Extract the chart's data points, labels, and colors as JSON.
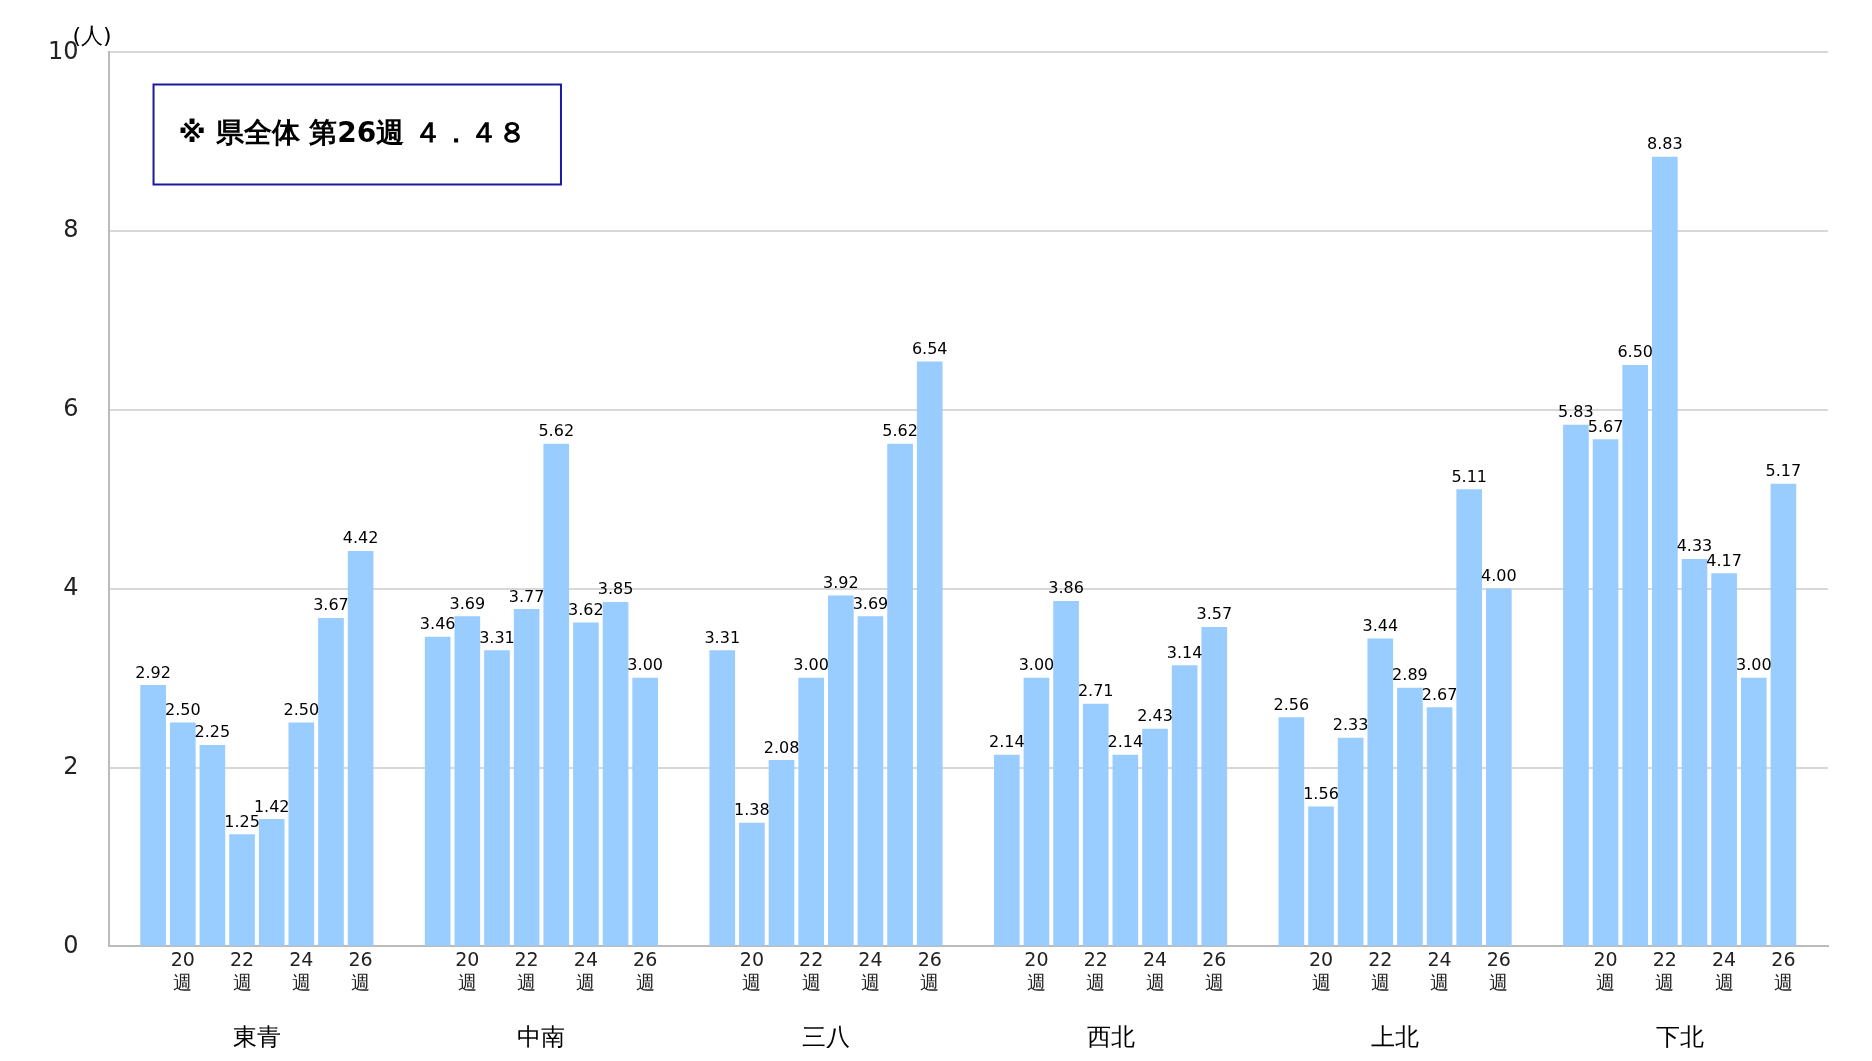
{
  "chart_data": {
    "type": "bar",
    "ylabel": "(人)",
    "categories": [
      null,
      "20週",
      null,
      "22週",
      null,
      "24週",
      null,
      "26週",
      null,
      "20週",
      null,
      "22週",
      null,
      "24週",
      null,
      "26週",
      null,
      "20週",
      null,
      "22週",
      null,
      "24週",
      null,
      "26週",
      null,
      "20週",
      null,
      "22週",
      null,
      "24週",
      null,
      "26週",
      null,
      "20週",
      null,
      "22週",
      null,
      "24週",
      null,
      "26週",
      null,
      "20週",
      null,
      "22週",
      null,
      "24週",
      null,
      "26週"
    ],
    "values": [
      2.92,
      2.5,
      2.25,
      1.25,
      1.42,
      2.5,
      3.67,
      4.42,
      3.46,
      3.69,
      3.31,
      3.77,
      5.62,
      3.62,
      3.85,
      3.0,
      3.31,
      1.38,
      2.08,
      3.0,
      3.92,
      3.69,
      5.62,
      6.54,
      2.14,
      3.0,
      3.86,
      2.71,
      2.14,
      2.43,
      3.14,
      3.57,
      2.56,
      1.56,
      2.33,
      3.44,
      2.89,
      2.67,
      5.11,
      4.0,
      5.83,
      5.67,
      6.5,
      8.83,
      4.33,
      4.17,
      3.0,
      5.17
    ],
    "color": "#99ccff",
    "ylim": [
      0,
      10
    ],
    "yticks": [
      0,
      2,
      4,
      6,
      8,
      10
    ],
    "grid": "y",
    "legend": false,
    "value_labels": [
      "2.92",
      "2.50",
      "2.25",
      "1.25",
      "1.42",
      "2.50",
      "3.67",
      "4.42",
      "3.46",
      "3.69",
      "3.31",
      "3.77",
      "5.62",
      "3.62",
      "3.85",
      "3.00",
      "3.31",
      "1.38",
      "2.08",
      "3.00",
      "3.92",
      "3.69",
      "5.62",
      "6.54",
      "2.14",
      "3.00",
      "3.86",
      "2.71",
      "2.14",
      "2.43",
      "3.14",
      "3.57",
      "2.56",
      "1.56",
      "2.33",
      "3.44",
      "2.89",
      "2.67",
      "5.11",
      "4.00",
      "5.83",
      "5.67",
      "6.50",
      "8.83",
      "4.33",
      "4.17",
      "3.00",
      "5.17"
    ],
    "annotations": [
      "※ 県全体 第26週 ４．４８",
      "東青",
      "中南",
      "三八",
      "西北",
      "上北",
      "下北"
    ]
  }
}
